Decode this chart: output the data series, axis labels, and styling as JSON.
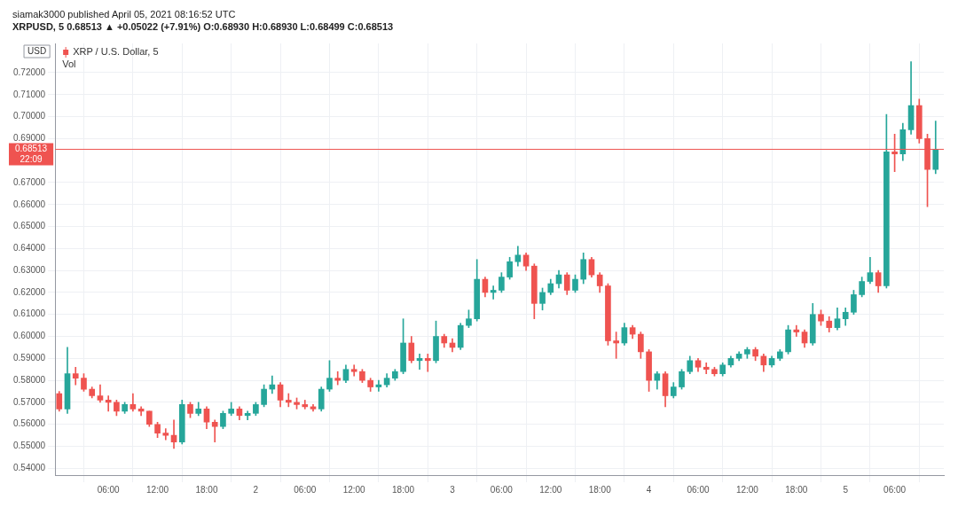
{
  "chart_data": {
    "type": "candlestick",
    "title": "siamak3000 published April 05, 2021 08:16:52 UTC",
    "subtitle": "XRPUSD, 5 0.68513 ▲ +0.05022 (+7.91%) O:0.68930 H:0.68930 L:0.68499 C:0.68513",
    "ylabel": "USD",
    "x": [
      "2021-04-01T00:00",
      "2021-04-01T01:00",
      "2021-04-01T02:00",
      "2021-04-01T03:00",
      "2021-04-01T04:00",
      "2021-04-01T05:00",
      "2021-04-01T06:00",
      "2021-04-01T07:00",
      "2021-04-01T08:00",
      "2021-04-01T09:00",
      "2021-04-01T10:00",
      "2021-04-01T11:00",
      "2021-04-01T12:00",
      "2021-04-01T13:00",
      "2021-04-01T14:00",
      "2021-04-01T15:00",
      "2021-04-01T16:00",
      "2021-04-01T17:00",
      "2021-04-01T18:00",
      "2021-04-01T19:00",
      "2021-04-01T20:00",
      "2021-04-01T21:00",
      "2021-04-01T22:00",
      "2021-04-01T23:00",
      "2021-04-02T00:00",
      "2021-04-02T01:00",
      "2021-04-02T02:00",
      "2021-04-02T03:00",
      "2021-04-02T04:00",
      "2021-04-02T05:00",
      "2021-04-02T06:00",
      "2021-04-02T07:00",
      "2021-04-02T08:00",
      "2021-04-02T09:00",
      "2021-04-02T10:00",
      "2021-04-02T11:00",
      "2021-04-02T12:00",
      "2021-04-02T13:00",
      "2021-04-02T14:00",
      "2021-04-02T15:00",
      "2021-04-02T16:00",
      "2021-04-02T17:00",
      "2021-04-02T18:00",
      "2021-04-02T19:00",
      "2021-04-02T20:00",
      "2021-04-02T21:00",
      "2021-04-02T22:00",
      "2021-04-02T23:00",
      "2021-04-03T00:00",
      "2021-04-03T01:00",
      "2021-04-03T02:00",
      "2021-04-03T03:00",
      "2021-04-03T04:00",
      "2021-04-03T05:00",
      "2021-04-03T06:00",
      "2021-04-03T07:00",
      "2021-04-03T08:00",
      "2021-04-03T09:00",
      "2021-04-03T10:00",
      "2021-04-03T11:00",
      "2021-04-03T12:00",
      "2021-04-03T13:00",
      "2021-04-03T14:00",
      "2021-04-03T15:00",
      "2021-04-03T16:00",
      "2021-04-03T17:00",
      "2021-04-03T18:00",
      "2021-04-03T19:00",
      "2021-04-03T20:00",
      "2021-04-03T21:00",
      "2021-04-03T22:00",
      "2021-04-03T23:00",
      "2021-04-04T00:00",
      "2021-04-04T01:00",
      "2021-04-04T02:00",
      "2021-04-04T03:00",
      "2021-04-04T04:00",
      "2021-04-04T05:00",
      "2021-04-04T06:00",
      "2021-04-04T07:00",
      "2021-04-04T08:00",
      "2021-04-04T09:00",
      "2021-04-04T10:00",
      "2021-04-04T11:00",
      "2021-04-04T12:00",
      "2021-04-04T13:00",
      "2021-04-04T14:00",
      "2021-04-04T15:00",
      "2021-04-04T16:00",
      "2021-04-04T17:00",
      "2021-04-04T18:00",
      "2021-04-04T19:00",
      "2021-04-04T20:00",
      "2021-04-04T21:00",
      "2021-04-04T22:00",
      "2021-04-04T23:00",
      "2021-04-05T00:00",
      "2021-04-05T01:00",
      "2021-04-05T02:00",
      "2021-04-05T03:00",
      "2021-04-05T04:00",
      "2021-04-05T05:00",
      "2021-04-05T06:00",
      "2021-04-05T07:00",
      "2021-04-05T08:00",
      "2021-04-05T09:00",
      "2021-04-05T10:00",
      "2021-04-05T11:00"
    ],
    "series": [
      {
        "name": "XRP / U.S. Dollar, 5",
        "ohlc": [
          [
            0.574,
            0.575,
            0.566,
            0.567
          ],
          [
            0.567,
            0.595,
            0.565,
            0.583
          ],
          [
            0.583,
            0.586,
            0.578,
            0.581
          ],
          [
            0.581,
            0.583,
            0.575,
            0.576
          ],
          [
            0.576,
            0.577,
            0.572,
            0.573
          ],
          [
            0.573,
            0.578,
            0.57,
            0.571
          ],
          [
            0.571,
            0.573,
            0.566,
            0.57
          ],
          [
            0.57,
            0.571,
            0.564,
            0.566
          ],
          [
            0.566,
            0.57,
            0.565,
            0.569
          ],
          [
            0.569,
            0.574,
            0.566,
            0.567
          ],
          [
            0.567,
            0.568,
            0.564,
            0.566
          ],
          [
            0.566,
            0.566,
            0.559,
            0.56
          ],
          [
            0.56,
            0.561,
            0.554,
            0.556
          ],
          [
            0.556,
            0.558,
            0.553,
            0.555
          ],
          [
            0.555,
            0.562,
            0.549,
            0.552
          ],
          [
            0.552,
            0.571,
            0.551,
            0.569
          ],
          [
            0.569,
            0.57,
            0.563,
            0.565
          ],
          [
            0.565,
            0.57,
            0.564,
            0.567
          ],
          [
            0.567,
            0.568,
            0.558,
            0.561
          ],
          [
            0.561,
            0.562,
            0.552,
            0.559
          ],
          [
            0.559,
            0.566,
            0.558,
            0.565
          ],
          [
            0.565,
            0.57,
            0.564,
            0.567
          ],
          [
            0.567,
            0.568,
            0.562,
            0.564
          ],
          [
            0.564,
            0.566,
            0.562,
            0.565
          ],
          [
            0.565,
            0.57,
            0.564,
            0.569
          ],
          [
            0.569,
            0.578,
            0.568,
            0.576
          ],
          [
            0.576,
            0.582,
            0.574,
            0.578
          ],
          [
            0.578,
            0.579,
            0.568,
            0.571
          ],
          [
            0.571,
            0.574,
            0.568,
            0.57
          ],
          [
            0.57,
            0.572,
            0.567,
            0.569
          ],
          [
            0.569,
            0.571,
            0.567,
            0.568
          ],
          [
            0.568,
            0.569,
            0.566,
            0.567
          ],
          [
            0.567,
            0.577,
            0.566,
            0.576
          ],
          [
            0.576,
            0.589,
            0.575,
            0.581
          ],
          [
            0.581,
            0.584,
            0.578,
            0.58
          ],
          [
            0.58,
            0.587,
            0.579,
            0.585
          ],
          [
            0.585,
            0.587,
            0.582,
            0.584
          ],
          [
            0.584,
            0.585,
            0.579,
            0.58
          ],
          [
            0.58,
            0.581,
            0.575,
            0.577
          ],
          [
            0.577,
            0.58,
            0.575,
            0.578
          ],
          [
            0.578,
            0.583,
            0.577,
            0.581
          ],
          [
            0.581,
            0.585,
            0.58,
            0.584
          ],
          [
            0.584,
            0.608,
            0.583,
            0.597
          ],
          [
            0.597,
            0.6,
            0.588,
            0.589
          ],
          [
            0.589,
            0.592,
            0.585,
            0.59
          ],
          [
            0.59,
            0.592,
            0.584,
            0.589
          ],
          [
            0.589,
            0.607,
            0.588,
            0.6
          ],
          [
            0.6,
            0.601,
            0.595,
            0.597
          ],
          [
            0.597,
            0.599,
            0.593,
            0.595
          ],
          [
            0.595,
            0.606,
            0.594,
            0.605
          ],
          [
            0.605,
            0.612,
            0.604,
            0.608
          ],
          [
            0.608,
            0.635,
            0.607,
            0.626
          ],
          [
            0.626,
            0.627,
            0.618,
            0.62
          ],
          [
            0.62,
            0.623,
            0.617,
            0.621
          ],
          [
            0.621,
            0.629,
            0.62,
            0.627
          ],
          [
            0.627,
            0.636,
            0.626,
            0.634
          ],
          [
            0.634,
            0.641,
            0.632,
            0.637
          ],
          [
            0.637,
            0.638,
            0.63,
            0.632
          ],
          [
            0.632,
            0.633,
            0.608,
            0.615
          ],
          [
            0.615,
            0.622,
            0.612,
            0.62
          ],
          [
            0.62,
            0.626,
            0.619,
            0.624
          ],
          [
            0.624,
            0.63,
            0.622,
            0.628
          ],
          [
            0.628,
            0.629,
            0.619,
            0.621
          ],
          [
            0.621,
            0.628,
            0.62,
            0.626
          ],
          [
            0.626,
            0.638,
            0.624,
            0.635
          ],
          [
            0.635,
            0.636,
            0.627,
            0.628
          ],
          [
            0.628,
            0.629,
            0.62,
            0.623
          ],
          [
            0.623,
            0.624,
            0.596,
            0.598
          ],
          [
            0.598,
            0.602,
            0.59,
            0.597
          ],
          [
            0.597,
            0.606,
            0.596,
            0.604
          ],
          [
            0.604,
            0.605,
            0.599,
            0.601
          ],
          [
            0.601,
            0.602,
            0.59,
            0.593
          ],
          [
            0.593,
            0.594,
            0.575,
            0.58
          ],
          [
            0.58,
            0.584,
            0.576,
            0.583
          ],
          [
            0.583,
            0.584,
            0.568,
            0.573
          ],
          [
            0.573,
            0.579,
            0.572,
            0.577
          ],
          [
            0.577,
            0.585,
            0.576,
            0.584
          ],
          [
            0.584,
            0.591,
            0.583,
            0.589
          ],
          [
            0.589,
            0.59,
            0.584,
            0.586
          ],
          [
            0.586,
            0.588,
            0.583,
            0.585
          ],
          [
            0.585,
            0.586,
            0.582,
            0.583
          ],
          [
            0.583,
            0.588,
            0.582,
            0.587
          ],
          [
            0.587,
            0.591,
            0.586,
            0.59
          ],
          [
            0.59,
            0.593,
            0.589,
            0.592
          ],
          [
            0.592,
            0.595,
            0.59,
            0.594
          ],
          [
            0.594,
            0.595,
            0.589,
            0.591
          ],
          [
            0.591,
            0.592,
            0.584,
            0.587
          ],
          [
            0.587,
            0.591,
            0.586,
            0.59
          ],
          [
            0.59,
            0.594,
            0.589,
            0.593
          ],
          [
            0.593,
            0.605,
            0.592,
            0.603
          ],
          [
            0.603,
            0.605,
            0.6,
            0.602
          ],
          [
            0.602,
            0.603,
            0.595,
            0.597
          ],
          [
            0.597,
            0.615,
            0.596,
            0.61
          ],
          [
            0.61,
            0.612,
            0.605,
            0.607
          ],
          [
            0.607,
            0.609,
            0.602,
            0.604
          ],
          [
            0.604,
            0.613,
            0.603,
            0.608
          ],
          [
            0.608,
            0.613,
            0.605,
            0.611
          ],
          [
            0.611,
            0.621,
            0.61,
            0.619
          ],
          [
            0.619,
            0.627,
            0.618,
            0.625
          ],
          [
            0.625,
            0.636,
            0.624,
            0.629
          ],
          [
            0.629,
            0.63,
            0.62,
            0.623
          ],
          [
            0.623,
            0.701,
            0.622,
            0.684
          ],
          [
            0.684,
            0.692,
            0.675,
            0.683
          ],
          [
            0.683,
            0.697,
            0.68,
            0.694
          ],
          [
            0.694,
            0.725,
            0.692,
            0.705
          ],
          [
            0.705,
            0.708,
            0.688,
            0.69
          ],
          [
            0.69,
            0.692,
            0.659,
            0.676
          ],
          [
            0.676,
            0.698,
            0.674,
            0.68513
          ]
        ],
        "colors": [
          "#ef5350",
          "#26a69a",
          "#ef5350",
          "#ef5350",
          "#ef5350",
          "#ef5350",
          "#ef5350",
          "#ef5350",
          "#26a69a",
          "#ef5350",
          "#ef5350",
          "#ef5350",
          "#ef5350",
          "#ef5350",
          "#ef5350",
          "#26a69a",
          "#ef5350",
          "#26a69a",
          "#ef5350",
          "#ef5350",
          "#26a69a",
          "#26a69a",
          "#ef5350",
          "#26a69a",
          "#26a69a",
          "#26a69a",
          "#26a69a",
          "#ef5350",
          "#ef5350",
          "#ef5350",
          "#ef5350",
          "#ef5350",
          "#26a69a",
          "#26a69a",
          "#ef5350",
          "#26a69a",
          "#ef5350",
          "#ef5350",
          "#ef5350",
          "#26a69a",
          "#26a69a",
          "#26a69a",
          "#26a69a",
          "#ef5350",
          "#26a69a",
          "#ef5350",
          "#26a69a",
          "#ef5350",
          "#ef5350",
          "#26a69a",
          "#26a69a",
          "#26a69a",
          "#ef5350",
          "#26a69a",
          "#26a69a",
          "#26a69a",
          "#26a69a",
          "#ef5350",
          "#ef5350",
          "#26a69a",
          "#26a69a",
          "#26a69a",
          "#ef5350",
          "#26a69a",
          "#26a69a",
          "#ef5350",
          "#ef5350",
          "#ef5350",
          "#ef5350",
          "#26a69a",
          "#ef5350",
          "#ef5350",
          "#ef5350",
          "#26a69a",
          "#ef5350",
          "#26a69a",
          "#26a69a",
          "#26a69a",
          "#ef5350",
          "#ef5350",
          "#ef5350",
          "#26a69a",
          "#26a69a",
          "#26a69a",
          "#26a69a",
          "#ef5350",
          "#ef5350",
          "#26a69a",
          "#26a69a",
          "#26a69a",
          "#ef5350",
          "#ef5350",
          "#26a69a",
          "#ef5350",
          "#ef5350",
          "#26a69a",
          "#26a69a",
          "#26a69a",
          "#26a69a",
          "#26a69a",
          "#ef5350",
          "#26a69a",
          "#ef5350",
          "#26a69a",
          "#26a69a",
          "#ef5350",
          "#ef5350",
          "#26a69a"
        ]
      }
    ],
    "xlim": [
      "2021-03-31T23:30",
      "2021-04-05T12:00"
    ],
    "xticks": [
      {
        "value": "2021-04-01T06:00",
        "label": "06:00"
      },
      {
        "value": "2021-04-01T12:00",
        "label": "12:00"
      },
      {
        "value": "2021-04-01T18:00",
        "label": "18:00"
      },
      {
        "value": "2021-04-02T00:00",
        "label": "2"
      },
      {
        "value": "2021-04-02T06:00",
        "label": "06:00"
      },
      {
        "value": "2021-04-02T12:00",
        "label": "12:00"
      },
      {
        "value": "2021-04-02T18:00",
        "label": "18:00"
      },
      {
        "value": "2021-04-03T00:00",
        "label": "3"
      },
      {
        "value": "2021-04-03T06:00",
        "label": "06:00"
      },
      {
        "value": "2021-04-03T12:00",
        "label": "12:00"
      },
      {
        "value": "2021-04-03T18:00",
        "label": "18:00"
      },
      {
        "value": "2021-04-04T00:00",
        "label": "4"
      },
      {
        "value": "2021-04-04T06:00",
        "label": "06:00"
      },
      {
        "value": "2021-04-04T12:00",
        "label": "12:00"
      },
      {
        "value": "2021-04-04T18:00",
        "label": "18:00"
      },
      {
        "value": "2021-04-05T00:00",
        "label": "5"
      },
      {
        "value": "2021-04-05T06:00",
        "label": "06:00"
      }
    ],
    "ylim": [
      0.5369,
      0.7333
    ],
    "yticks": [
      {
        "value": 0.54,
        "label": "0.54000"
      },
      {
        "value": 0.55,
        "label": "0.55000"
      },
      {
        "value": 0.56,
        "label": "0.56000"
      },
      {
        "value": 0.57,
        "label": "0.57000"
      },
      {
        "value": 0.58,
        "label": "0.58000"
      },
      {
        "value": 0.59,
        "label": "0.59000"
      },
      {
        "value": 0.6,
        "label": "0.60000"
      },
      {
        "value": 0.61,
        "label": "0.61000"
      },
      {
        "value": 0.62,
        "label": "0.62000"
      },
      {
        "value": 0.63,
        "label": "0.63000"
      },
      {
        "value": 0.64,
        "label": "0.64000"
      },
      {
        "value": 0.65,
        "label": "0.65000"
      },
      {
        "value": 0.66,
        "label": "0.66000"
      },
      {
        "value": 0.67,
        "label": "0.67000"
      },
      {
        "value": 0.69,
        "label": "0.69000"
      },
      {
        "value": 0.7,
        "label": "0.70000"
      },
      {
        "value": 0.71,
        "label": "0.71000"
      },
      {
        "value": 0.72,
        "label": "0.72000"
      }
    ],
    "ref_lines": [
      {
        "axis": "y",
        "value": 0.68513,
        "label": "0.68513",
        "color": "#ef5350"
      }
    ],
    "annotations": [
      "22:09",
      "Vol"
    ],
    "grid": true,
    "legend": "top left"
  }
}
